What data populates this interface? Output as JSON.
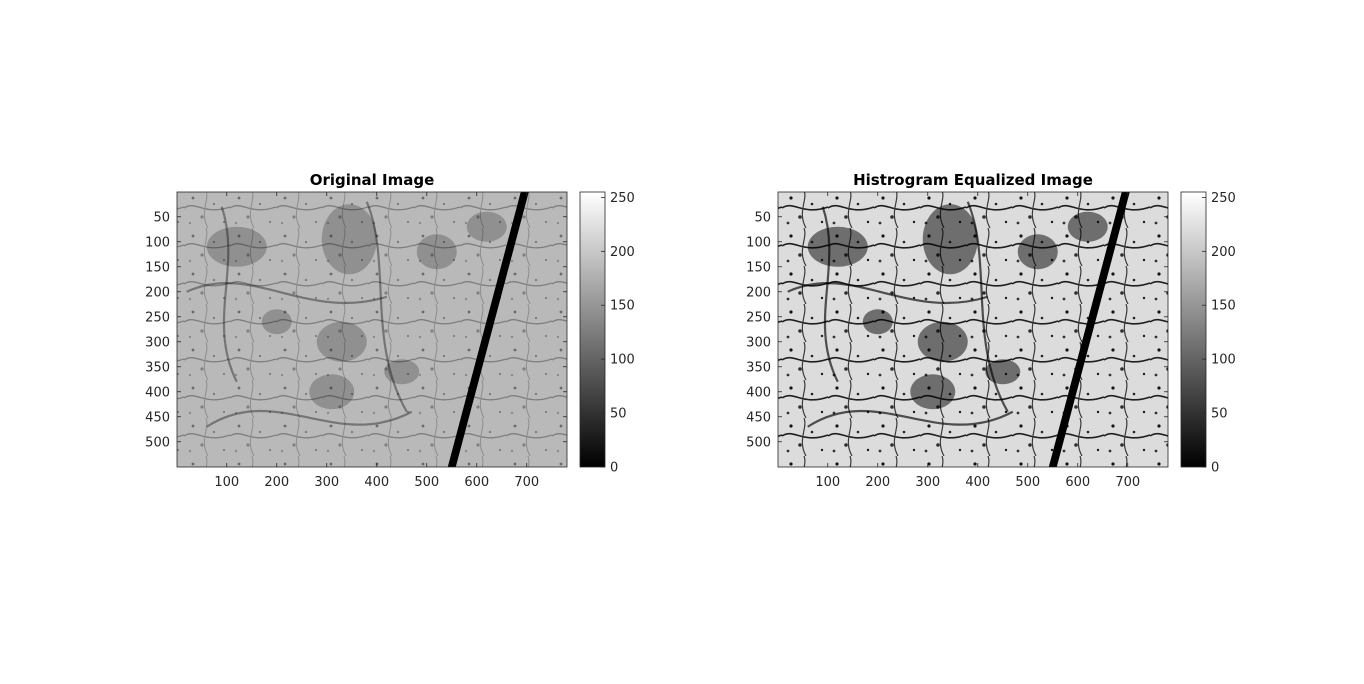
{
  "colors": {
    "axis": "#262626",
    "background": "#ffffff",
    "title": "#000000"
  },
  "chart_data": [
    {
      "type": "heatmap",
      "title": "Original Image",
      "xlabel": "",
      "ylabel": "",
      "xlim": [
        0.5,
        780.5
      ],
      "ylim": [
        0.5,
        550.5
      ],
      "y_direction": "reverse",
      "x_ticks": [
        100,
        200,
        300,
        400,
        500,
        600,
        700
      ],
      "y_ticks": [
        50,
        100,
        150,
        200,
        250,
        300,
        350,
        400,
        450,
        500
      ],
      "colormap": "gray",
      "colorbar": {
        "range": [
          0,
          255
        ],
        "ticks": [
          0,
          50,
          100,
          150,
          200,
          250
        ]
      },
      "contrast": "original"
    },
    {
      "type": "heatmap",
      "title": "Histrogram Equalized Image",
      "xlabel": "",
      "ylabel": "",
      "xlim": [
        0.5,
        780.5
      ],
      "ylim": [
        0.5,
        550.5
      ],
      "y_direction": "reverse",
      "x_ticks": [
        100,
        200,
        300,
        400,
        500,
        600,
        700
      ],
      "y_ticks": [
        50,
        100,
        150,
        200,
        250,
        300,
        350,
        400,
        450,
        500
      ],
      "colormap": "gray",
      "colorbar": {
        "range": [
          0,
          255
        ],
        "ticks": [
          0,
          50,
          100,
          150,
          200,
          250
        ]
      },
      "contrast": "equalized"
    }
  ]
}
